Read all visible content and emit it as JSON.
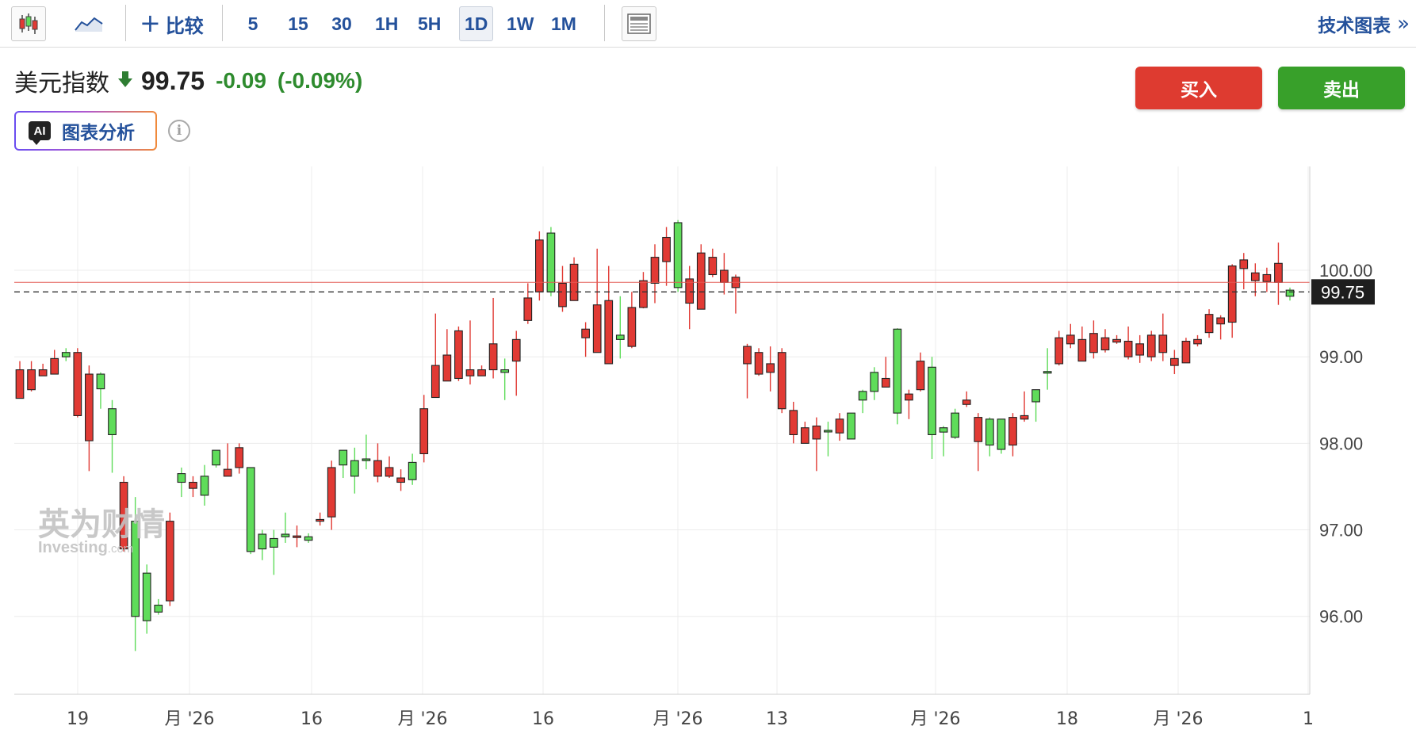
{
  "toolbar": {
    "candlestick_icon": "candlestick-chart-icon",
    "line_icon": "area-line-chart-icon",
    "compare_label": "比较",
    "timeframes": [
      "5",
      "15",
      "30",
      "1H",
      "5H",
      "1D",
      "1W",
      "1M"
    ],
    "active_timeframe": "1D",
    "layout_icon": "chart-layout-icon",
    "tech_chart_label": "技术图表",
    "tech_chart_arrow": "»"
  },
  "instrument": {
    "name": "美元指数",
    "direction_icon": "down-arrow-icon",
    "price": "99.75",
    "change": "-0.09",
    "change_pct": "(-0.09%)",
    "change_color": "#2e8b2e"
  },
  "ai": {
    "badge": "AI",
    "label": "图表分析",
    "info_icon": "i"
  },
  "trade": {
    "buy_label": "买入",
    "sell_label": "卖出",
    "buy_color": "#de3b30",
    "sell_color": "#38a02a"
  },
  "watermark": {
    "cn": "英为财情",
    "en": "Investing",
    "en_suffix": ".com"
  },
  "chart_data": {
    "type": "candlestick",
    "up_color": "#5fdc5a",
    "down_color": "#e13a34",
    "ylim": [
      95.1,
      101.2
    ],
    "y_ticks": [
      96,
      97,
      98,
      99,
      100
    ],
    "y_tick_labels": [
      "96.00",
      "97.00",
      "98.00",
      "99.00",
      "100.00"
    ],
    "last_price": 99.75,
    "last_price_label": "99.75",
    "reference_line": 99.86,
    "x_labels": [
      "19",
      "月 '26",
      "16",
      "月 '26",
      "16",
      "月 '26",
      "13",
      "月 '26",
      "18",
      "月 '26",
      "1"
    ],
    "ohlc": [
      [
        98.85,
        98.95,
        98.55,
        98.52
      ],
      [
        98.85,
        98.95,
        98.6,
        98.62
      ],
      [
        98.85,
        98.92,
        98.78,
        98.78
      ],
      [
        98.98,
        99.08,
        98.8,
        98.8
      ],
      [
        99.0,
        99.1,
        98.95,
        99.05
      ],
      [
        99.05,
        99.1,
        98.3,
        98.32
      ],
      [
        98.8,
        98.9,
        97.68,
        98.03
      ],
      [
        98.63,
        98.82,
        98.4,
        98.8
      ],
      [
        98.1,
        98.5,
        97.66,
        98.4
      ],
      [
        97.55,
        97.62,
        96.75,
        96.78
      ],
      [
        96.0,
        97.38,
        95.6,
        97.1
      ],
      [
        95.95,
        96.6,
        95.8,
        96.5
      ],
      [
        96.05,
        96.2,
        96.02,
        96.13
      ],
      [
        97.1,
        97.2,
        96.12,
        96.18
      ],
      [
        97.55,
        97.72,
        97.38,
        97.65
      ],
      [
        97.55,
        97.62,
        97.38,
        97.48
      ],
      [
        97.4,
        97.75,
        97.28,
        97.62
      ],
      [
        97.75,
        97.9,
        97.72,
        97.92
      ],
      [
        97.7,
        98.0,
        97.62,
        97.62
      ],
      [
        97.95,
        98.0,
        97.65,
        97.72
      ],
      [
        96.75,
        97.7,
        96.72,
        97.72
      ],
      [
        96.78,
        97.0,
        96.65,
        96.95
      ],
      [
        96.8,
        97.0,
        96.48,
        96.9
      ],
      [
        96.92,
        97.2,
        96.85,
        96.95
      ],
      [
        96.93,
        97.05,
        96.8,
        96.92
      ],
      [
        96.88,
        96.96,
        96.85,
        96.92
      ],
      [
        97.12,
        97.2,
        97.05,
        97.1
      ],
      [
        97.72,
        97.8,
        97.0,
        97.15
      ],
      [
        97.75,
        97.88,
        97.6,
        97.92
      ],
      [
        97.62,
        97.95,
        97.42,
        97.8
      ],
      [
        97.8,
        98.1,
        97.7,
        97.82
      ],
      [
        97.8,
        98.0,
        97.55,
        97.62
      ],
      [
        97.72,
        97.85,
        97.6,
        97.62
      ],
      [
        97.6,
        97.7,
        97.45,
        97.55
      ],
      [
        97.58,
        97.88,
        97.52,
        97.78
      ],
      [
        98.4,
        98.56,
        97.78,
        97.88
      ],
      [
        98.9,
        99.5,
        98.53,
        98.53
      ],
      [
        99.02,
        99.32,
        98.72,
        98.72
      ],
      [
        99.3,
        99.35,
        98.72,
        98.75
      ],
      [
        98.85,
        99.42,
        98.68,
        98.78
      ],
      [
        98.85,
        98.9,
        98.78,
        98.78
      ],
      [
        99.15,
        99.68,
        98.75,
        98.85
      ],
      [
        98.82,
        98.98,
        98.5,
        98.85
      ],
      [
        99.2,
        99.3,
        98.55,
        98.95
      ],
      [
        99.68,
        99.85,
        99.38,
        99.42
      ],
      [
        100.35,
        100.45,
        99.65,
        99.75
      ],
      [
        99.75,
        100.5,
        99.7,
        100.43
      ],
      [
        99.85,
        100.05,
        99.52,
        99.58
      ],
      [
        100.07,
        100.15,
        99.65,
        99.65
      ],
      [
        99.32,
        99.4,
        99.0,
        99.22
      ],
      [
        99.6,
        100.25,
        99.05,
        99.05
      ],
      [
        99.65,
        100.05,
        98.95,
        98.92
      ],
      [
        99.2,
        99.7,
        98.98,
        99.25
      ],
      [
        99.57,
        99.75,
        99.1,
        99.12
      ],
      [
        99.88,
        99.98,
        99.56,
        99.57
      ],
      [
        100.15,
        100.3,
        99.62,
        99.85
      ],
      [
        100.38,
        100.5,
        99.82,
        100.1
      ],
      [
        99.8,
        100.58,
        99.75,
        100.55
      ],
      [
        99.9,
        100.05,
        99.32,
        99.62
      ],
      [
        100.2,
        100.3,
        99.55,
        99.55
      ],
      [
        100.15,
        100.25,
        99.92,
        99.95
      ],
      [
        100.0,
        100.2,
        99.72,
        99.86
      ],
      [
        99.92,
        99.95,
        99.5,
        99.8
      ],
      [
        99.12,
        99.15,
        98.52,
        98.92
      ],
      [
        99.05,
        99.1,
        98.78,
        98.8
      ],
      [
        98.92,
        99.12,
        98.6,
        98.82
      ],
      [
        99.05,
        99.1,
        98.35,
        98.4
      ],
      [
        98.38,
        98.48,
        98.0,
        98.1
      ],
      [
        98.18,
        98.25,
        98.0,
        98.0
      ],
      [
        98.2,
        98.3,
        97.68,
        98.05
      ],
      [
        98.15,
        98.25,
        97.85,
        98.15
      ],
      [
        98.28,
        98.35,
        98.03,
        98.12
      ],
      [
        98.05,
        98.35,
        98.05,
        98.35
      ],
      [
        98.5,
        98.62,
        98.35,
        98.6
      ],
      [
        98.6,
        98.88,
        98.5,
        98.82
      ],
      [
        98.75,
        99.0,
        98.65,
        98.65
      ],
      [
        98.35,
        99.33,
        98.22,
        99.32
      ],
      [
        98.57,
        98.62,
        98.28,
        98.5
      ],
      [
        98.95,
        99.05,
        98.6,
        98.62
      ],
      [
        98.1,
        99.0,
        97.82,
        98.88
      ],
      [
        98.13,
        98.2,
        97.85,
        98.18
      ],
      [
        98.07,
        98.4,
        98.05,
        98.35
      ],
      [
        98.5,
        98.6,
        98.42,
        98.45
      ],
      [
        98.3,
        98.35,
        97.68,
        98.02
      ],
      [
        97.98,
        98.3,
        97.85,
        98.28
      ],
      [
        97.93,
        98.25,
        97.88,
        98.28
      ],
      [
        98.3,
        98.35,
        97.85,
        97.98
      ],
      [
        98.32,
        98.6,
        98.25,
        98.28
      ],
      [
        98.48,
        98.62,
        98.25,
        98.62
      ],
      [
        98.83,
        99.1,
        98.62,
        98.83
      ],
      [
        99.22,
        99.3,
        98.9,
        98.92
      ],
      [
        99.25,
        99.38,
        99.1,
        99.15
      ],
      [
        99.2,
        99.35,
        98.95,
        98.95
      ],
      [
        99.27,
        99.42,
        98.98,
        99.05
      ],
      [
        99.22,
        99.32,
        99.05,
        99.08
      ],
      [
        99.2,
        99.25,
        99.15,
        99.17
      ],
      [
        99.18,
        99.35,
        98.97,
        99.0
      ],
      [
        99.15,
        99.25,
        98.93,
        99.02
      ],
      [
        99.25,
        99.3,
        98.95,
        99.0
      ],
      [
        99.25,
        99.5,
        98.95,
        99.05
      ],
      [
        98.98,
        99.08,
        98.8,
        98.9
      ],
      [
        99.18,
        99.22,
        98.93,
        98.93
      ],
      [
        99.2,
        99.25,
        99.12,
        99.15
      ],
      [
        99.49,
        99.55,
        99.22,
        99.28
      ],
      [
        99.45,
        99.48,
        99.2,
        99.38
      ],
      [
        100.05,
        100.07,
        99.22,
        99.4
      ],
      [
        100.12,
        100.2,
        99.78,
        100.02
      ],
      [
        99.97,
        100.08,
        99.7,
        99.88
      ],
      [
        99.95,
        100.03,
        99.75,
        99.87
      ],
      [
        100.08,
        100.32,
        99.6,
        99.86
      ],
      [
        99.7,
        99.8,
        99.65,
        99.77
      ]
    ]
  }
}
